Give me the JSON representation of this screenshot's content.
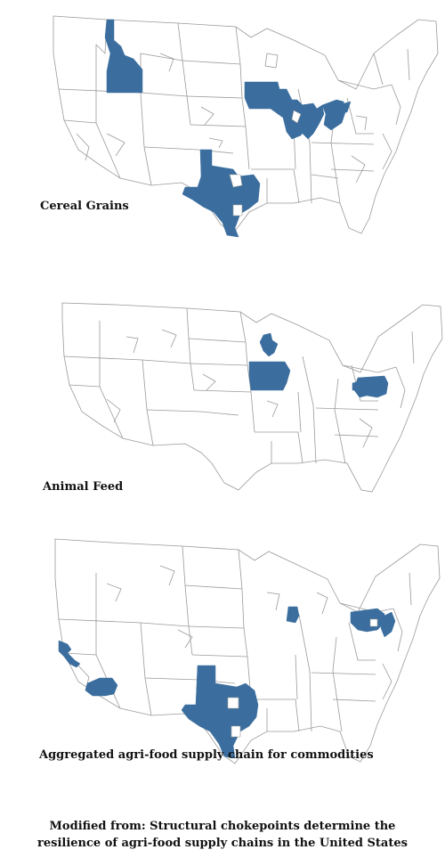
{
  "panels": [
    {
      "id": "cereal",
      "label": "Cereal Grains",
      "highlighted_regions": [
        "Idaho",
        "Texas",
        "Minnesota-Wisconsin",
        "Illinois",
        "Indiana",
        "Ohio"
      ]
    },
    {
      "id": "feed",
      "label": "Animal Feed",
      "highlighted_regions": [
        "Iowa",
        "Central Wisconsin",
        "Pennsylvania"
      ]
    },
    {
      "id": "aggregated",
      "label": "Aggregated agri-food supply chain for commodities",
      "highlighted_regions": [
        "San Francisco Bay Area",
        "Southern California",
        "Texas",
        "Central Illinois",
        "Pennsylvania",
        "New Jersey"
      ]
    }
  ],
  "caption": {
    "line1": "Modified from: Structural chokepoints determine the",
    "line2": "resilience of agri-food supply chains in the United States"
  },
  "colors": {
    "highlight": "#3b6e9e",
    "border": "#9a9a9a",
    "background": "#ffffff"
  }
}
